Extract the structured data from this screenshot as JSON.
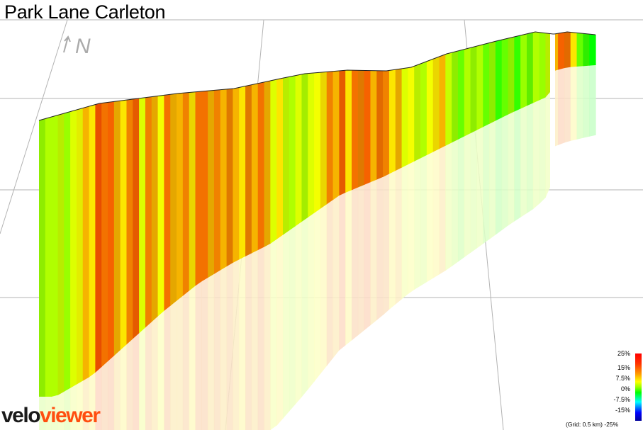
{
  "title": "Park Lane Carleton",
  "north_label": "N",
  "logo": {
    "part1": "velo",
    "part2": "viewer"
  },
  "legend": {
    "labels": [
      "25%",
      "15%",
      "7.5%",
      "0%",
      "-7.5%",
      "-15%"
    ],
    "min_label": "-25%"
  },
  "grid_note": "(Grid: 0.5 km)",
  "colors": {
    "gradient_max": "#ff0000",
    "gradient_zero": "#00ff00",
    "gradient_min": "#0000ff",
    "logo_accent": "#ff4e0f"
  },
  "chart_data": {
    "type": "area",
    "description_kind": "3d-elevation-profile-gradient-colored",
    "gradient_pct_segments": [
      3,
      4,
      4,
      5,
      3,
      6,
      7,
      9,
      8,
      13,
      11,
      12,
      9,
      8,
      10,
      12,
      6,
      10,
      9,
      7,
      11,
      9,
      9,
      10,
      8,
      11,
      11,
      9,
      10,
      9,
      10,
      9,
      8,
      10,
      9,
      11,
      9,
      6,
      8,
      5,
      4,
      6,
      4,
      6,
      7,
      8,
      10,
      9,
      12,
      8,
      11,
      10,
      12,
      9,
      11,
      10,
      8,
      9,
      6,
      7,
      5,
      4,
      7,
      8,
      9,
      5,
      3,
      2,
      4,
      3,
      4,
      2,
      3,
      1,
      2,
      3,
      1,
      3,
      2,
      4,
      3,
      5,
      9,
      12,
      11,
      8,
      2,
      1,
      0
    ]
  }
}
